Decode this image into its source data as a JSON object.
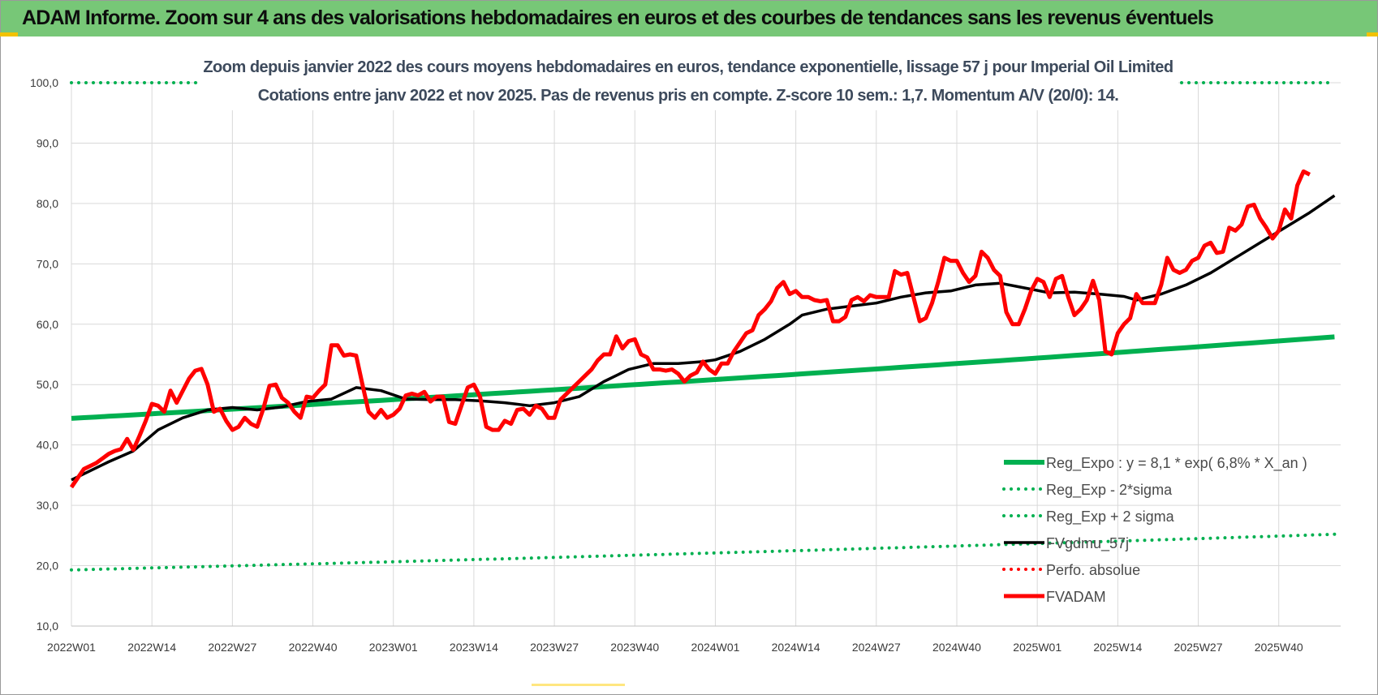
{
  "header": {
    "title": "ADAM Informe. Zoom sur 4 ans des valorisations hebdomadaires en euros et des courbes de tendances sans les revenus éventuels"
  },
  "colors": {
    "banner": "#77c777",
    "reg_expo": "#00b050",
    "fvgdmu": "#000000",
    "fvadam": "#ff0000",
    "perfo": "#ff0000",
    "grid": "#d9d9d9"
  },
  "chart_data": {
    "type": "line",
    "title_lines": [
      "Zoom depuis janvier 2022 des cours moyens hebdomadaires en euros, tendance exponentielle, lissage 57 j pour Imperial Oil Limited",
      "Cotations entre janv 2022 et nov 2025. Pas de revenus pris en compte. Z-score 10 sem.: 1,7. Momentum A/V (20/0): 14."
    ],
    "ylim": [
      10,
      100
    ],
    "yticks": [
      "10,0",
      "20,0",
      "30,0",
      "40,0",
      "50,0",
      "60,0",
      "70,0",
      "80,0",
      "90,0",
      "100,0"
    ],
    "n_weeks": 205,
    "xticks": [
      {
        "label": "2022W01",
        "week": 0
      },
      {
        "label": "2022W14",
        "week": 13
      },
      {
        "label": "2022W27",
        "week": 26
      },
      {
        "label": "2022W40",
        "week": 39
      },
      {
        "label": "2023W01",
        "week": 52
      },
      {
        "label": "2023W14",
        "week": 65
      },
      {
        "label": "2023W27",
        "week": 78
      },
      {
        "label": "2023W40",
        "week": 91
      },
      {
        "label": "2024W01",
        "week": 104
      },
      {
        "label": "2024W14",
        "week": 117
      },
      {
        "label": "2024W27",
        "week": 130
      },
      {
        "label": "2024W40",
        "week": 143
      },
      {
        "label": "2025W01",
        "week": 156
      },
      {
        "label": "2025W14",
        "week": 169
      },
      {
        "label": "2025W27",
        "week": 182
      },
      {
        "label": "2025W40",
        "week": 195
      }
    ],
    "series": [
      {
        "name": "Reg_Expo : y = 8,1 * exp( 6,8% *  X_an )",
        "style": "solid-thick",
        "color": "#00b050",
        "start": 44.4,
        "end": 57.9
      },
      {
        "name": "Reg_Exp - 2*sigma",
        "style": "dotted",
        "color": "#00b050",
        "start": 19.3,
        "end": 25.2
      },
      {
        "name": "Reg_Exp + 2 sigma",
        "style": "dotted",
        "color": "#00b050",
        "start": 100.0,
        "end": 100.0
      },
      {
        "name": "FVgdmu_57j",
        "style": "solid",
        "color": "#000000",
        "points": [
          [
            0,
            34.2
          ],
          [
            6,
            37.2
          ],
          [
            10,
            39.0
          ],
          [
            14,
            42.5
          ],
          [
            18,
            44.5
          ],
          [
            22,
            45.8
          ],
          [
            26,
            46.2
          ],
          [
            30,
            45.8
          ],
          [
            34,
            46.3
          ],
          [
            38,
            47.2
          ],
          [
            42,
            47.6
          ],
          [
            46,
            49.5
          ],
          [
            50,
            49.0
          ],
          [
            54,
            47.6
          ],
          [
            58,
            47.5
          ],
          [
            62,
            47.5
          ],
          [
            66,
            47.3
          ],
          [
            70,
            47.0
          ],
          [
            74,
            46.5
          ],
          [
            78,
            47.0
          ],
          [
            82,
            48.0
          ],
          [
            86,
            50.5
          ],
          [
            90,
            52.5
          ],
          [
            94,
            53.5
          ],
          [
            98,
            53.5
          ],
          [
            102,
            53.8
          ],
          [
            104,
            54.1
          ],
          [
            108,
            55.5
          ],
          [
            112,
            57.5
          ],
          [
            116,
            60.0
          ],
          [
            118,
            61.5
          ],
          [
            122,
            62.5
          ],
          [
            126,
            63.0
          ],
          [
            130,
            63.5
          ],
          [
            134,
            64.5
          ],
          [
            138,
            65.2
          ],
          [
            142,
            65.5
          ],
          [
            146,
            66.5
          ],
          [
            150,
            66.8
          ],
          [
            154,
            66.0
          ],
          [
            158,
            65.2
          ],
          [
            162,
            65.3
          ],
          [
            166,
            65.0
          ],
          [
            170,
            64.6
          ],
          [
            172,
            64.0
          ],
          [
            176,
            65.0
          ],
          [
            180,
            66.5
          ],
          [
            184,
            68.5
          ],
          [
            188,
            71.0
          ],
          [
            192,
            73.5
          ],
          [
            196,
            76.0
          ],
          [
            200,
            78.5
          ],
          [
            204,
            81.3
          ]
        ]
      },
      {
        "name": "Perfo. absolue",
        "style": "dotted",
        "color": "#ff0000",
        "points": []
      },
      {
        "name": "FVADAM",
        "style": "solid-thick",
        "color": "#ff0000",
        "points": [
          [
            0,
            33.0
          ],
          [
            2,
            36.0
          ],
          [
            4,
            37.0
          ],
          [
            6,
            38.5
          ],
          [
            7,
            39.0
          ],
          [
            8,
            39.3
          ],
          [
            9,
            41.0
          ],
          [
            10,
            39.2
          ],
          [
            11,
            41.5
          ],
          [
            12,
            44.0
          ],
          [
            13,
            46.8
          ],
          [
            14,
            46.5
          ],
          [
            15,
            45.5
          ],
          [
            16,
            49.0
          ],
          [
            17,
            47.0
          ],
          [
            18,
            49.0
          ],
          [
            19,
            51.0
          ],
          [
            20,
            52.3
          ],
          [
            21,
            52.6
          ],
          [
            22,
            50.0
          ],
          [
            23,
            45.5
          ],
          [
            24,
            46.0
          ],
          [
            25,
            44.0
          ],
          [
            26,
            42.5
          ],
          [
            27,
            43.0
          ],
          [
            28,
            44.5
          ],
          [
            29,
            43.5
          ],
          [
            30,
            43.0
          ],
          [
            31,
            46.0
          ],
          [
            32,
            49.8
          ],
          [
            33,
            50.0
          ],
          [
            34,
            47.8
          ],
          [
            35,
            47.0
          ],
          [
            36,
            45.5
          ],
          [
            37,
            44.5
          ],
          [
            38,
            48.0
          ],
          [
            39,
            47.8
          ],
          [
            40,
            49.0
          ],
          [
            41,
            50.0
          ],
          [
            42,
            56.5
          ],
          [
            43,
            56.5
          ],
          [
            44,
            54.8
          ],
          [
            45,
            55.0
          ],
          [
            46,
            54.8
          ],
          [
            47,
            50.0
          ],
          [
            48,
            45.5
          ],
          [
            49,
            44.5
          ],
          [
            50,
            45.8
          ],
          [
            51,
            44.5
          ],
          [
            52,
            45.0
          ],
          [
            53,
            46.0
          ],
          [
            54,
            48.2
          ],
          [
            55,
            48.5
          ],
          [
            56,
            48.2
          ],
          [
            57,
            48.8
          ],
          [
            58,
            47.2
          ],
          [
            59,
            48.0
          ],
          [
            60,
            48.0
          ],
          [
            61,
            43.8
          ],
          [
            62,
            43.5
          ],
          [
            63,
            46.5
          ],
          [
            64,
            49.5
          ],
          [
            65,
            50.0
          ],
          [
            66,
            48.0
          ],
          [
            67,
            43.0
          ],
          [
            68,
            42.5
          ],
          [
            69,
            42.5
          ],
          [
            70,
            44.0
          ],
          [
            71,
            43.5
          ],
          [
            72,
            45.8
          ],
          [
            73,
            46.0
          ],
          [
            74,
            45.0
          ],
          [
            75,
            46.5
          ],
          [
            76,
            46.0
          ],
          [
            77,
            44.5
          ],
          [
            78,
            44.5
          ],
          [
            79,
            47.5
          ],
          [
            80,
            48.5
          ],
          [
            81,
            49.5
          ],
          [
            82,
            50.5
          ],
          [
            83,
            51.5
          ],
          [
            84,
            52.5
          ],
          [
            85,
            54.0
          ],
          [
            86,
            55.0
          ],
          [
            87,
            55.0
          ],
          [
            88,
            58.0
          ],
          [
            89,
            56.0
          ],
          [
            90,
            57.2
          ],
          [
            91,
            57.5
          ],
          [
            92,
            55.0
          ],
          [
            93,
            54.5
          ],
          [
            94,
            52.5
          ],
          [
            95,
            52.5
          ],
          [
            96,
            52.3
          ],
          [
            97,
            52.5
          ],
          [
            98,
            51.8
          ],
          [
            99,
            50.5
          ],
          [
            100,
            51.5
          ],
          [
            101,
            52.0
          ],
          [
            102,
            53.8
          ],
          [
            103,
            52.5
          ],
          [
            104,
            51.8
          ],
          [
            105,
            53.5
          ],
          [
            106,
            53.5
          ],
          [
            107,
            55.5
          ],
          [
            108,
            57.0
          ],
          [
            109,
            58.5
          ],
          [
            110,
            59.0
          ],
          [
            111,
            61.5
          ],
          [
            112,
            62.5
          ],
          [
            113,
            63.8
          ],
          [
            114,
            66.0
          ],
          [
            115,
            67.0
          ],
          [
            116,
            65.0
          ],
          [
            117,
            65.5
          ],
          [
            118,
            64.5
          ],
          [
            119,
            64.5
          ],
          [
            120,
            64.0
          ],
          [
            121,
            63.8
          ],
          [
            122,
            64.0
          ],
          [
            123,
            60.5
          ],
          [
            124,
            60.5
          ],
          [
            125,
            61.2
          ],
          [
            126,
            64.0
          ],
          [
            127,
            64.5
          ],
          [
            128,
            63.8
          ],
          [
            129,
            64.8
          ],
          [
            130,
            64.5
          ],
          [
            131,
            64.5
          ],
          [
            132,
            64.5
          ],
          [
            133,
            68.8
          ],
          [
            134,
            68.2
          ],
          [
            135,
            68.5
          ],
          [
            136,
            64.5
          ],
          [
            137,
            60.5
          ],
          [
            138,
            61.0
          ],
          [
            139,
            63.5
          ],
          [
            140,
            67.0
          ],
          [
            141,
            71.0
          ],
          [
            142,
            70.5
          ],
          [
            143,
            70.5
          ],
          [
            144,
            68.5
          ],
          [
            145,
            67.0
          ],
          [
            146,
            68.0
          ],
          [
            147,
            72.0
          ],
          [
            148,
            71.0
          ],
          [
            149,
            69.0
          ],
          [
            150,
            68.0
          ],
          [
            151,
            62.0
          ],
          [
            152,
            60.0
          ],
          [
            153,
            60.0
          ],
          [
            154,
            62.5
          ],
          [
            155,
            65.5
          ],
          [
            156,
            67.5
          ],
          [
            157,
            67.0
          ],
          [
            158,
            64.5
          ],
          [
            159,
            67.5
          ],
          [
            160,
            68.0
          ],
          [
            161,
            64.5
          ],
          [
            162,
            61.5
          ],
          [
            163,
            62.5
          ],
          [
            164,
            64.0
          ],
          [
            165,
            67.2
          ],
          [
            166,
            64.0
          ],
          [
            167,
            55.5
          ],
          [
            168,
            55.0
          ],
          [
            169,
            58.5
          ],
          [
            170,
            60.0
          ],
          [
            171,
            61.0
          ],
          [
            172,
            65.0
          ],
          [
            173,
            63.5
          ],
          [
            174,
            63.5
          ],
          [
            175,
            63.5
          ],
          [
            176,
            66.5
          ],
          [
            177,
            71.0
          ],
          [
            178,
            69.0
          ],
          [
            179,
            68.5
          ],
          [
            180,
            69.0
          ],
          [
            181,
            70.5
          ],
          [
            182,
            71.0
          ],
          [
            183,
            73.0
          ],
          [
            184,
            73.5
          ],
          [
            185,
            71.8
          ],
          [
            186,
            72.0
          ],
          [
            187,
            76.0
          ],
          [
            188,
            75.5
          ],
          [
            189,
            76.5
          ],
          [
            190,
            79.5
          ],
          [
            191,
            79.8
          ],
          [
            192,
            77.5
          ],
          [
            193,
            76.0
          ],
          [
            194,
            74.2
          ],
          [
            195,
            75.5
          ],
          [
            196,
            79.0
          ],
          [
            197,
            77.5
          ],
          [
            198,
            83.0
          ],
          [
            199,
            85.3
          ],
          [
            200,
            84.8
          ]
        ]
      }
    ]
  },
  "legend": {
    "entries": [
      {
        "label": "Reg_Expo : y = 8,1 * exp( 6,8% *  X_an )",
        "style": "solid-thick",
        "color": "#00b050"
      },
      {
        "label": "Reg_Exp - 2*sigma",
        "style": "dotted",
        "color": "#00b050"
      },
      {
        "label": "Reg_Exp + 2 sigma",
        "style": "dotted",
        "color": "#00b050"
      },
      {
        "label": "FVgdmu_57j",
        "style": "solid",
        "color": "#000000"
      },
      {
        "label": "Perfo. absolue",
        "style": "dotted",
        "color": "#ff0000"
      },
      {
        "label": "FVADAM",
        "style": "solid-thick",
        "color": "#ff0000"
      }
    ]
  }
}
